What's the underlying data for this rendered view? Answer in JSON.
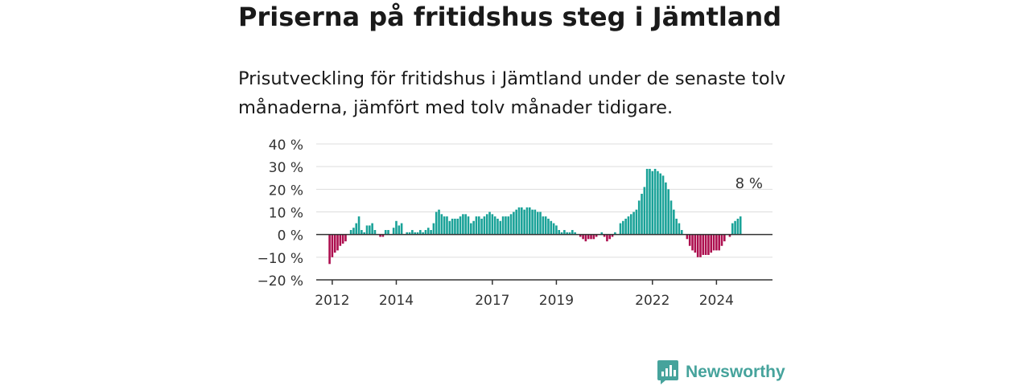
{
  "header": {
    "title": "Priserna på fritidshus steg i Jämtland",
    "subtitle": "Prisutveckling för fritidshus i Jämtland under de senaste tolv månaderna, jämfört med tolv månader tidigare."
  },
  "brand": {
    "name": "Newsworthy",
    "icon": "newsworthy-logo-icon"
  },
  "colors": {
    "positive": "#1aa298",
    "negative": "#ad0f4f",
    "grid": "#dddddd",
    "axis": "#333333"
  },
  "chart_data": {
    "type": "bar",
    "title": "",
    "xlabel": "",
    "ylabel": "",
    "ylim": [
      -20,
      40
    ],
    "y_ticks": [
      {
        "value": 40,
        "label": "40 %"
      },
      {
        "value": 30,
        "label": "30 %"
      },
      {
        "value": 20,
        "label": "20 %"
      },
      {
        "value": 10,
        "label": "10 %"
      },
      {
        "value": 0,
        "label": "0 %"
      },
      {
        "value": -10,
        "label": "−10 %"
      },
      {
        "value": -20,
        "label": "−20 %"
      }
    ],
    "x_ticks": [
      {
        "year": 2012,
        "label": "2012"
      },
      {
        "year": 2014,
        "label": "2014"
      },
      {
        "year": 2017,
        "label": "2017"
      },
      {
        "year": 2019,
        "label": "2019"
      },
      {
        "year": 2022,
        "label": "2022"
      },
      {
        "year": 2024,
        "label": "2024"
      }
    ],
    "x_range": [
      "2011-07",
      "2025-10"
    ],
    "grid": true,
    "start_month": "2011-12",
    "values": [
      -13,
      -10,
      -8,
      -7,
      -5,
      -4,
      -3,
      0,
      2,
      3,
      5,
      8,
      2,
      1,
      4,
      4,
      5,
      2,
      0,
      -1,
      -1,
      2,
      2,
      0,
      3,
      6,
      4,
      5,
      0,
      1,
      1,
      2,
      1,
      1,
      2,
      1,
      2,
      3,
      2,
      5,
      10,
      11,
      9,
      8,
      8,
      6,
      7,
      7,
      7,
      8,
      9,
      9,
      8,
      5,
      6,
      8,
      8,
      7,
      8,
      9,
      10,
      9,
      8,
      7,
      6,
      8,
      8,
      8,
      9,
      10,
      11,
      12,
      12,
      11,
      12,
      12,
      11,
      11,
      10,
      10,
      8,
      8,
      7,
      6,
      5,
      4,
      2,
      1,
      2,
      1,
      1,
      2,
      1,
      0,
      -1,
      -2,
      -3,
      -2,
      -2,
      -2,
      -1,
      0,
      1,
      -1,
      -3,
      -2,
      -1,
      1,
      0,
      5,
      6,
      7,
      8,
      9,
      10,
      11,
      15,
      18,
      21,
      29,
      29,
      28,
      29,
      28,
      27,
      26,
      23,
      20,
      15,
      11,
      7,
      5,
      2,
      0,
      -2,
      -5,
      -7,
      -8,
      -10,
      -10,
      -9,
      -9,
      -9,
      -8,
      -7,
      -7,
      -7,
      -5,
      -3,
      0,
      -1,
      5,
      6,
      7,
      8
    ],
    "annotations": [
      {
        "month": "2025-03",
        "value": 8,
        "text": "8 %"
      }
    ]
  }
}
